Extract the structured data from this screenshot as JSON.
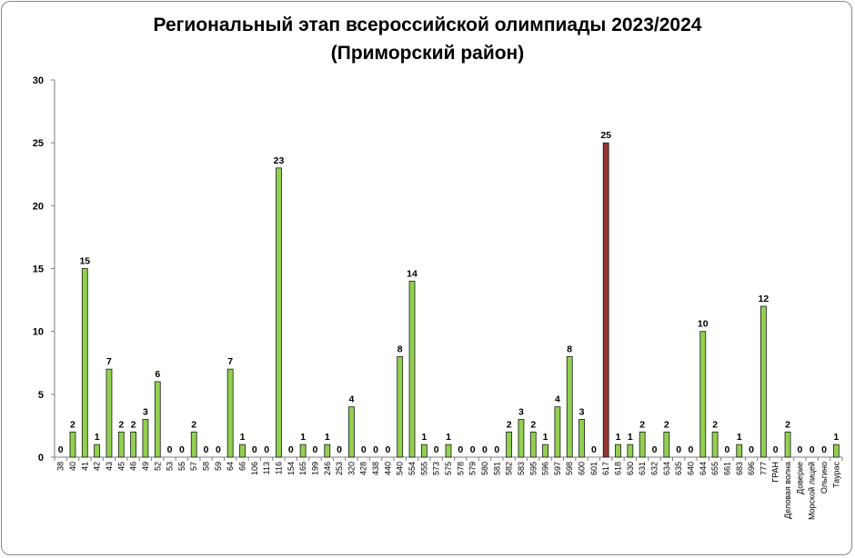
{
  "chart_data": {
    "type": "bar",
    "title_line1": "Региональный этап всероссийской олимпиады 2023/2024",
    "title_line2": "(Приморский район)",
    "xlabel": "",
    "ylabel": "",
    "ylim": [
      0,
      30
    ],
    "yticks": [
      "0",
      "5",
      "10",
      "15",
      "20",
      "25",
      "30"
    ],
    "grid": false,
    "legend": "none",
    "bar_color": "#92d050",
    "highlight_color": "#943634",
    "highlight_category": "617",
    "categories": [
      "38",
      "40",
      "41",
      "42",
      "43",
      "45",
      "46",
      "49",
      "52",
      "53",
      "55",
      "57",
      "58",
      "59",
      "64",
      "66",
      "106",
      "113",
      "116",
      "154",
      "165",
      "199",
      "246",
      "253",
      "320",
      "428",
      "438",
      "440",
      "540",
      "554",
      "555",
      "573",
      "575",
      "578",
      "579",
      "580",
      "581",
      "582",
      "583",
      "595",
      "596",
      "597",
      "598",
      "600",
      "601",
      "617",
      "618",
      "630",
      "631",
      "632",
      "634",
      "635",
      "640",
      "644",
      "655",
      "661",
      "683",
      "696",
      "777",
      "ГРАН",
      "Деловая волна",
      "Доверие",
      "Морской лицей",
      "Ольгино",
      "Таурас"
    ],
    "values": [
      0,
      2,
      15,
      1,
      7,
      2,
      2,
      3,
      6,
      0,
      0,
      2,
      0,
      0,
      7,
      1,
      0,
      0,
      23,
      0,
      1,
      0,
      1,
      0,
      4,
      0,
      0,
      0,
      8,
      14,
      1,
      0,
      1,
      0,
      0,
      0,
      0,
      2,
      3,
      2,
      1,
      4,
      8,
      3,
      0,
      25,
      1,
      1,
      2,
      0,
      2,
      0,
      0,
      10,
      2,
      0,
      1,
      0,
      12,
      0,
      2,
      0,
      0,
      0,
      1
    ]
  }
}
